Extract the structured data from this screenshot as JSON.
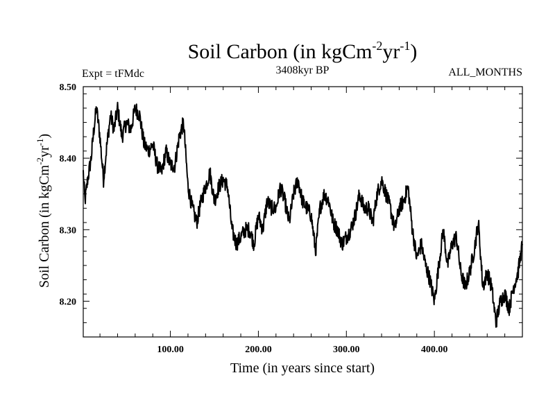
{
  "chart_data": {
    "type": "line",
    "title": {
      "main": "Soil Carbon (in kgCm",
      "sup1": "-2",
      "mid": "yr",
      "sup2": "-1",
      "end": ")"
    },
    "subtitle_left": "Expt = tFMdc",
    "subtitle_center": "3408kyr BP",
    "subtitle_right": "ALL_MONTHS",
    "xlabel": "Time (in years since start)",
    "ylabel": {
      "main": "Soil Carbon (in kgCm",
      "sup1": "-2",
      "mid": "yr",
      "sup2": "-1",
      "end": ")"
    },
    "xlim": [
      1,
      500
    ],
    "ylim": [
      8.15,
      8.5
    ],
    "xticks": [
      100,
      200,
      300,
      400
    ],
    "xtick_labels": [
      "100.00",
      "200.00",
      "300.00",
      "400.00"
    ],
    "yticks": [
      8.2,
      8.3,
      8.4,
      8.5
    ],
    "ytick_labels": [
      "8.20",
      "8.30",
      "8.40",
      "8.50"
    ],
    "series": [
      {
        "name": "Soil Carbon",
        "x": [
          1,
          3,
          6,
          10,
          13,
          16,
          20,
          24,
          28,
          32,
          36,
          40,
          45,
          50,
          55,
          60,
          65,
          70,
          75,
          80,
          85,
          90,
          95,
          100,
          105,
          110,
          115,
          120,
          125,
          130,
          135,
          140,
          145,
          150,
          155,
          160,
          165,
          170,
          175,
          180,
          185,
          190,
          195,
          200,
          205,
          210,
          215,
          220,
          225,
          230,
          235,
          240,
          245,
          250,
          255,
          260,
          265,
          270,
          275,
          280,
          285,
          290,
          295,
          300,
          305,
          310,
          315,
          320,
          325,
          330,
          335,
          340,
          345,
          350,
          355,
          360,
          365,
          370,
          375,
          380,
          385,
          390,
          395,
          400,
          405,
          410,
          415,
          420,
          425,
          430,
          435,
          440,
          445,
          450,
          455,
          460,
          465,
          470,
          475,
          480,
          485,
          490,
          495,
          500
        ],
        "values": [
          8.38,
          8.34,
          8.37,
          8.4,
          8.44,
          8.47,
          8.43,
          8.37,
          8.42,
          8.46,
          8.44,
          8.47,
          8.43,
          8.45,
          8.44,
          8.47,
          8.46,
          8.42,
          8.41,
          8.42,
          8.39,
          8.38,
          8.41,
          8.39,
          8.39,
          8.43,
          8.45,
          8.36,
          8.33,
          8.31,
          8.34,
          8.36,
          8.38,
          8.34,
          8.36,
          8.37,
          8.36,
          8.3,
          8.28,
          8.29,
          8.3,
          8.3,
          8.28,
          8.32,
          8.3,
          8.34,
          8.33,
          8.33,
          8.36,
          8.34,
          8.31,
          8.35,
          8.37,
          8.34,
          8.33,
          8.32,
          8.27,
          8.33,
          8.35,
          8.34,
          8.31,
          8.3,
          8.28,
          8.29,
          8.3,
          8.32,
          8.35,
          8.33,
          8.33,
          8.31,
          8.35,
          8.37,
          8.35,
          8.33,
          8.3,
          8.33,
          8.34,
          8.36,
          8.3,
          8.26,
          8.28,
          8.25,
          8.23,
          8.2,
          8.25,
          8.3,
          8.25,
          8.28,
          8.29,
          8.24,
          8.22,
          8.24,
          8.27,
          8.31,
          8.22,
          8.24,
          8.22,
          8.17,
          8.2,
          8.21,
          8.19,
          8.22,
          8.24,
          8.28
        ]
      }
    ]
  },
  "style": {
    "line_color": "#000000",
    "axis_color": "#000000",
    "background": "#ffffff"
  }
}
